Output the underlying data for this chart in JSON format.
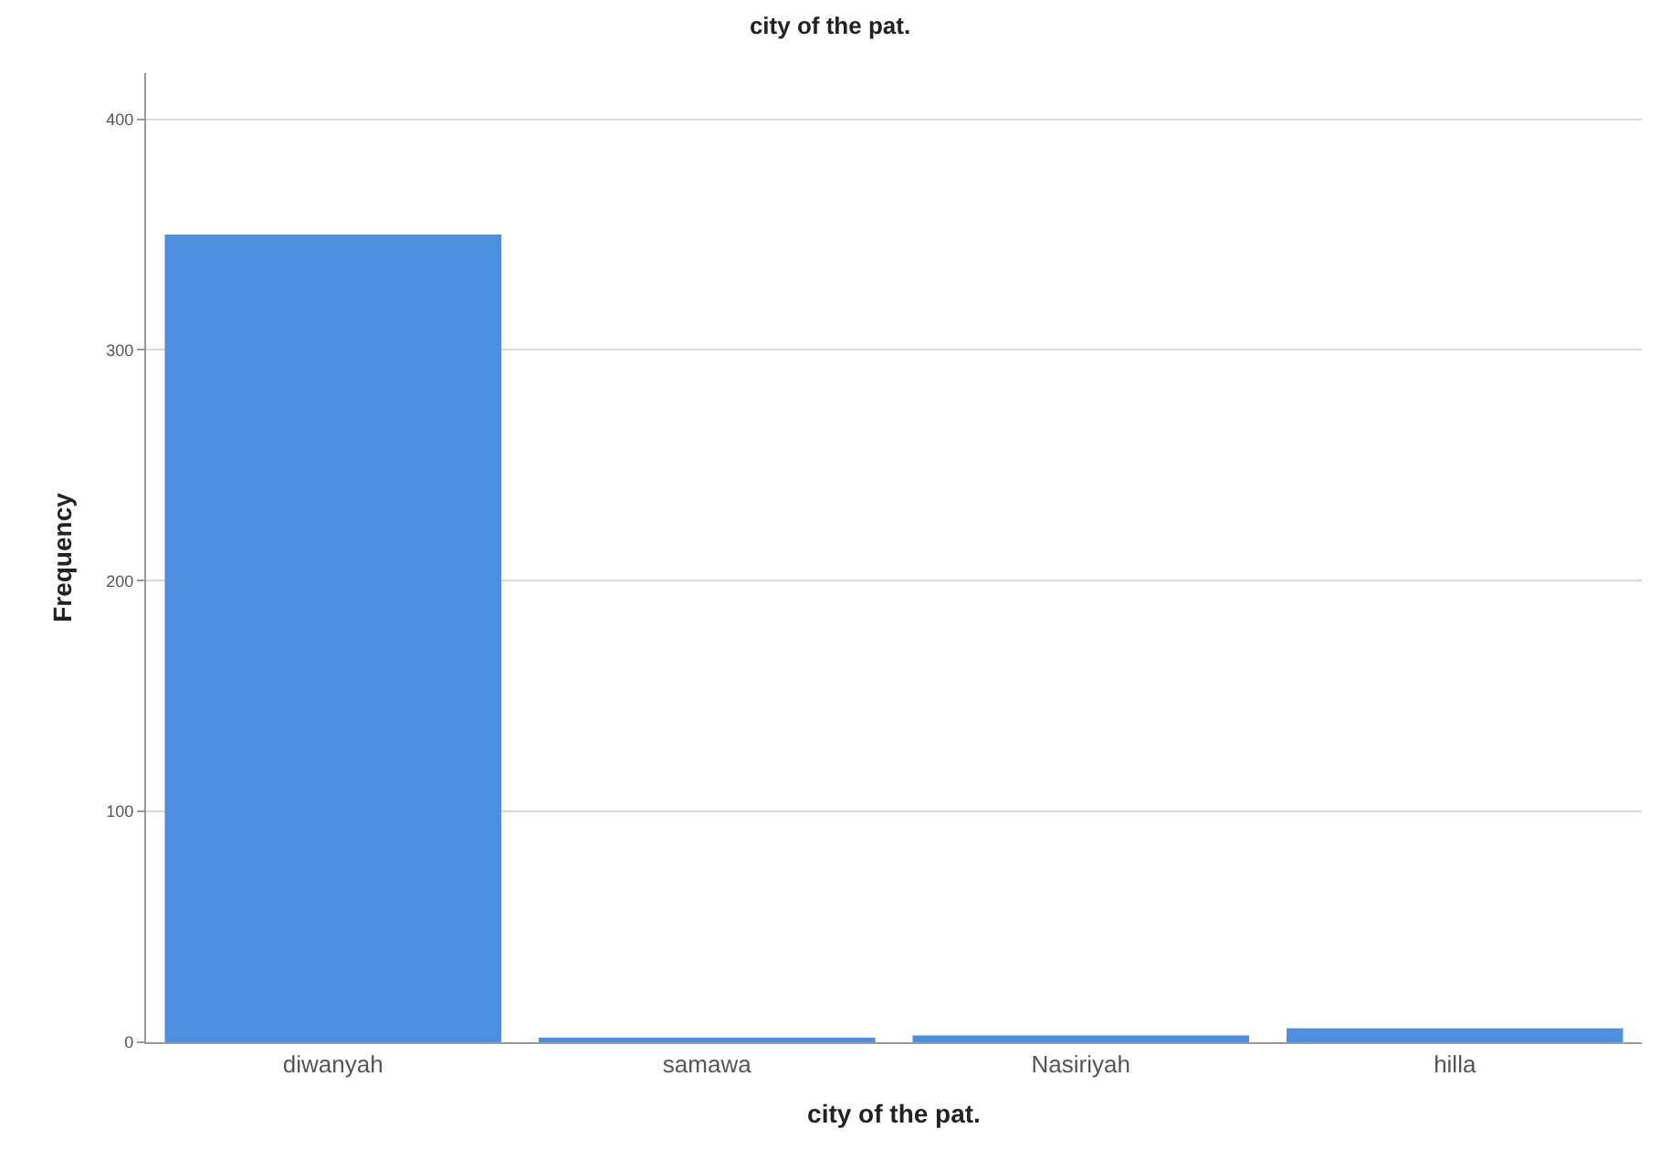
{
  "chart_data": {
    "type": "bar",
    "title": "city of the pat.",
    "xlabel": "city of the pat.",
    "ylabel": "Frequency",
    "categories": [
      "diwanyah",
      "samawa",
      "Nasiriyah",
      "hilla"
    ],
    "values": [
      350,
      2,
      3,
      6
    ],
    "color": "#4f8fe0",
    "ylim": [
      0,
      420
    ],
    "yticks": [
      0,
      100,
      200,
      300,
      400
    ],
    "grid": "y",
    "legend": false
  }
}
